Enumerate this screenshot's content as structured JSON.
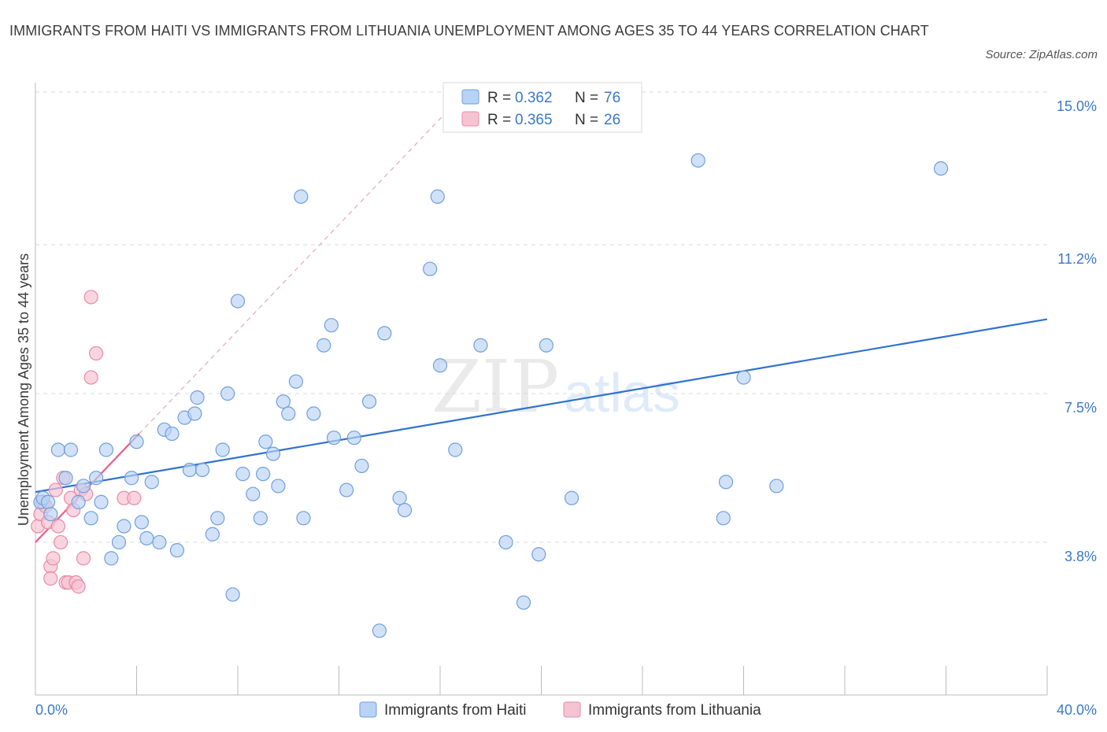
{
  "title": "IMMIGRANTS FROM HAITI VS IMMIGRANTS FROM LITHUANIA UNEMPLOYMENT AMONG AGES 35 TO 44 YEARS CORRELATION CHART",
  "source": "Source: ZipAtlas.com",
  "watermark": {
    "zip": "ZIP",
    "atlas": "atlas"
  },
  "colors": {
    "haiti_fill": "#b8d3f5",
    "haiti_stroke": "#6f9fdc",
    "haiti_line": "#2f72cf",
    "lith_fill": "#f6c3d3",
    "lith_stroke": "#e88aa8",
    "lith_line": "#e8608c",
    "tick_text": "#3a78c9",
    "grid": "#d8d8d8"
  },
  "legend": {
    "r_label": "R =",
    "n_label": "N =",
    "rows": [
      {
        "r": "0.362",
        "n": "76"
      },
      {
        "r": "0.365",
        "n": "26"
      }
    ]
  },
  "chart_data": {
    "type": "scatter",
    "title": "IMMIGRANTS FROM HAITI VS IMMIGRANTS FROM LITHUANIA UNEMPLOYMENT AMONG AGES 35 TO 44 YEARS CORRELATION CHART",
    "xlabel": "",
    "ylabel": "Unemployment Among Ages 35 to 44 years",
    "xlim": [
      0,
      40
    ],
    "ylim": [
      0,
      15
    ],
    "x_tick_labels": [
      "0.0%",
      "40.0%"
    ],
    "y_ticks": [
      3.8,
      7.5,
      11.2,
      15.0
    ],
    "y_tick_labels": [
      "3.8%",
      "7.5%",
      "11.2%",
      "15.0%"
    ],
    "grid": "horizontal dashed",
    "legend_position": "top-center and bottom",
    "series": [
      {
        "name": "Immigrants from Haiti",
        "r": 0.362,
        "n": 76,
        "trend": {
          "x": [
            0,
            40
          ],
          "y": [
            5.05,
            9.35
          ]
        },
        "points": [
          [
            0.2,
            4.8
          ],
          [
            0.3,
            4.9
          ],
          [
            0.5,
            4.8
          ],
          [
            0.6,
            4.5
          ],
          [
            0.9,
            6.1
          ],
          [
            1.2,
            5.4
          ],
          [
            1.4,
            6.1
          ],
          [
            1.7,
            4.8
          ],
          [
            1.9,
            5.2
          ],
          [
            2.2,
            4.4
          ],
          [
            2.4,
            5.4
          ],
          [
            2.6,
            4.8
          ],
          [
            2.8,
            6.1
          ],
          [
            3.0,
            3.4
          ],
          [
            3.3,
            3.8
          ],
          [
            3.5,
            4.2
          ],
          [
            3.8,
            5.4
          ],
          [
            4.0,
            6.3
          ],
          [
            4.2,
            4.3
          ],
          [
            4.4,
            3.9
          ],
          [
            4.6,
            5.3
          ],
          [
            4.9,
            3.8
          ],
          [
            5.1,
            6.6
          ],
          [
            5.4,
            6.5
          ],
          [
            5.6,
            3.6
          ],
          [
            5.9,
            6.9
          ],
          [
            6.1,
            5.6
          ],
          [
            6.3,
            7.0
          ],
          [
            6.4,
            7.4
          ],
          [
            6.6,
            5.6
          ],
          [
            7.0,
            4.0
          ],
          [
            7.2,
            4.4
          ],
          [
            7.4,
            6.1
          ],
          [
            7.6,
            7.5
          ],
          [
            7.8,
            2.5
          ],
          [
            8.0,
            9.8
          ],
          [
            8.2,
            5.5
          ],
          [
            8.6,
            5.0
          ],
          [
            8.9,
            4.4
          ],
          [
            9.0,
            5.5
          ],
          [
            9.1,
            6.3
          ],
          [
            9.4,
            6.0
          ],
          [
            9.6,
            5.2
          ],
          [
            9.8,
            7.3
          ],
          [
            10.0,
            7.0
          ],
          [
            10.3,
            7.8
          ],
          [
            10.6,
            4.4
          ],
          [
            10.5,
            12.4
          ],
          [
            11.0,
            7.0
          ],
          [
            11.4,
            8.7
          ],
          [
            11.8,
            6.4
          ],
          [
            11.7,
            9.2
          ],
          [
            12.3,
            5.1
          ],
          [
            12.6,
            6.4
          ],
          [
            12.9,
            5.7
          ],
          [
            13.2,
            7.3
          ],
          [
            13.6,
            1.6
          ],
          [
            13.8,
            9.0
          ],
          [
            14.4,
            4.9
          ],
          [
            14.6,
            4.6
          ],
          [
            15.6,
            10.6
          ],
          [
            15.9,
            12.4
          ],
          [
            16.0,
            8.2
          ],
          [
            16.6,
            6.1
          ],
          [
            17.6,
            8.7
          ],
          [
            18.6,
            3.8
          ],
          [
            19.3,
            2.3
          ],
          [
            19.9,
            3.5
          ],
          [
            20.2,
            8.7
          ],
          [
            21.2,
            4.9
          ],
          [
            26.2,
            13.3
          ],
          [
            27.2,
            4.4
          ],
          [
            27.3,
            5.3
          ],
          [
            28.0,
            7.9
          ],
          [
            29.3,
            5.2
          ],
          [
            35.8,
            13.1
          ]
        ]
      },
      {
        "name": "Immigrants from Lithuania",
        "r": 0.365,
        "n": 26,
        "trend": {
          "x": [
            0,
            4.1
          ],
          "y": [
            3.8,
            6.5
          ]
        },
        "points": [
          [
            0.1,
            4.2
          ],
          [
            0.2,
            4.5
          ],
          [
            0.3,
            4.8
          ],
          [
            0.4,
            4.7
          ],
          [
            0.5,
            4.3
          ],
          [
            0.6,
            3.2
          ],
          [
            0.7,
            3.4
          ],
          [
            0.8,
            5.1
          ],
          [
            0.9,
            4.2
          ],
          [
            1.0,
            3.8
          ],
          [
            1.1,
            5.4
          ],
          [
            1.2,
            2.8
          ],
          [
            1.3,
            2.8
          ],
          [
            1.4,
            4.9
          ],
          [
            1.5,
            4.6
          ],
          [
            1.6,
            2.8
          ],
          [
            1.7,
            2.7
          ],
          [
            1.8,
            5.1
          ],
          [
            1.9,
            3.4
          ],
          [
            2.0,
            5.0
          ],
          [
            2.2,
            9.9
          ],
          [
            2.2,
            7.9
          ],
          [
            2.4,
            8.5
          ],
          [
            3.5,
            4.9
          ],
          [
            3.9,
            4.9
          ],
          [
            0.6,
            2.9
          ]
        ]
      }
    ]
  },
  "bottom_legend": [
    "Immigrants from Haiti",
    "Immigrants from Lithuania"
  ]
}
